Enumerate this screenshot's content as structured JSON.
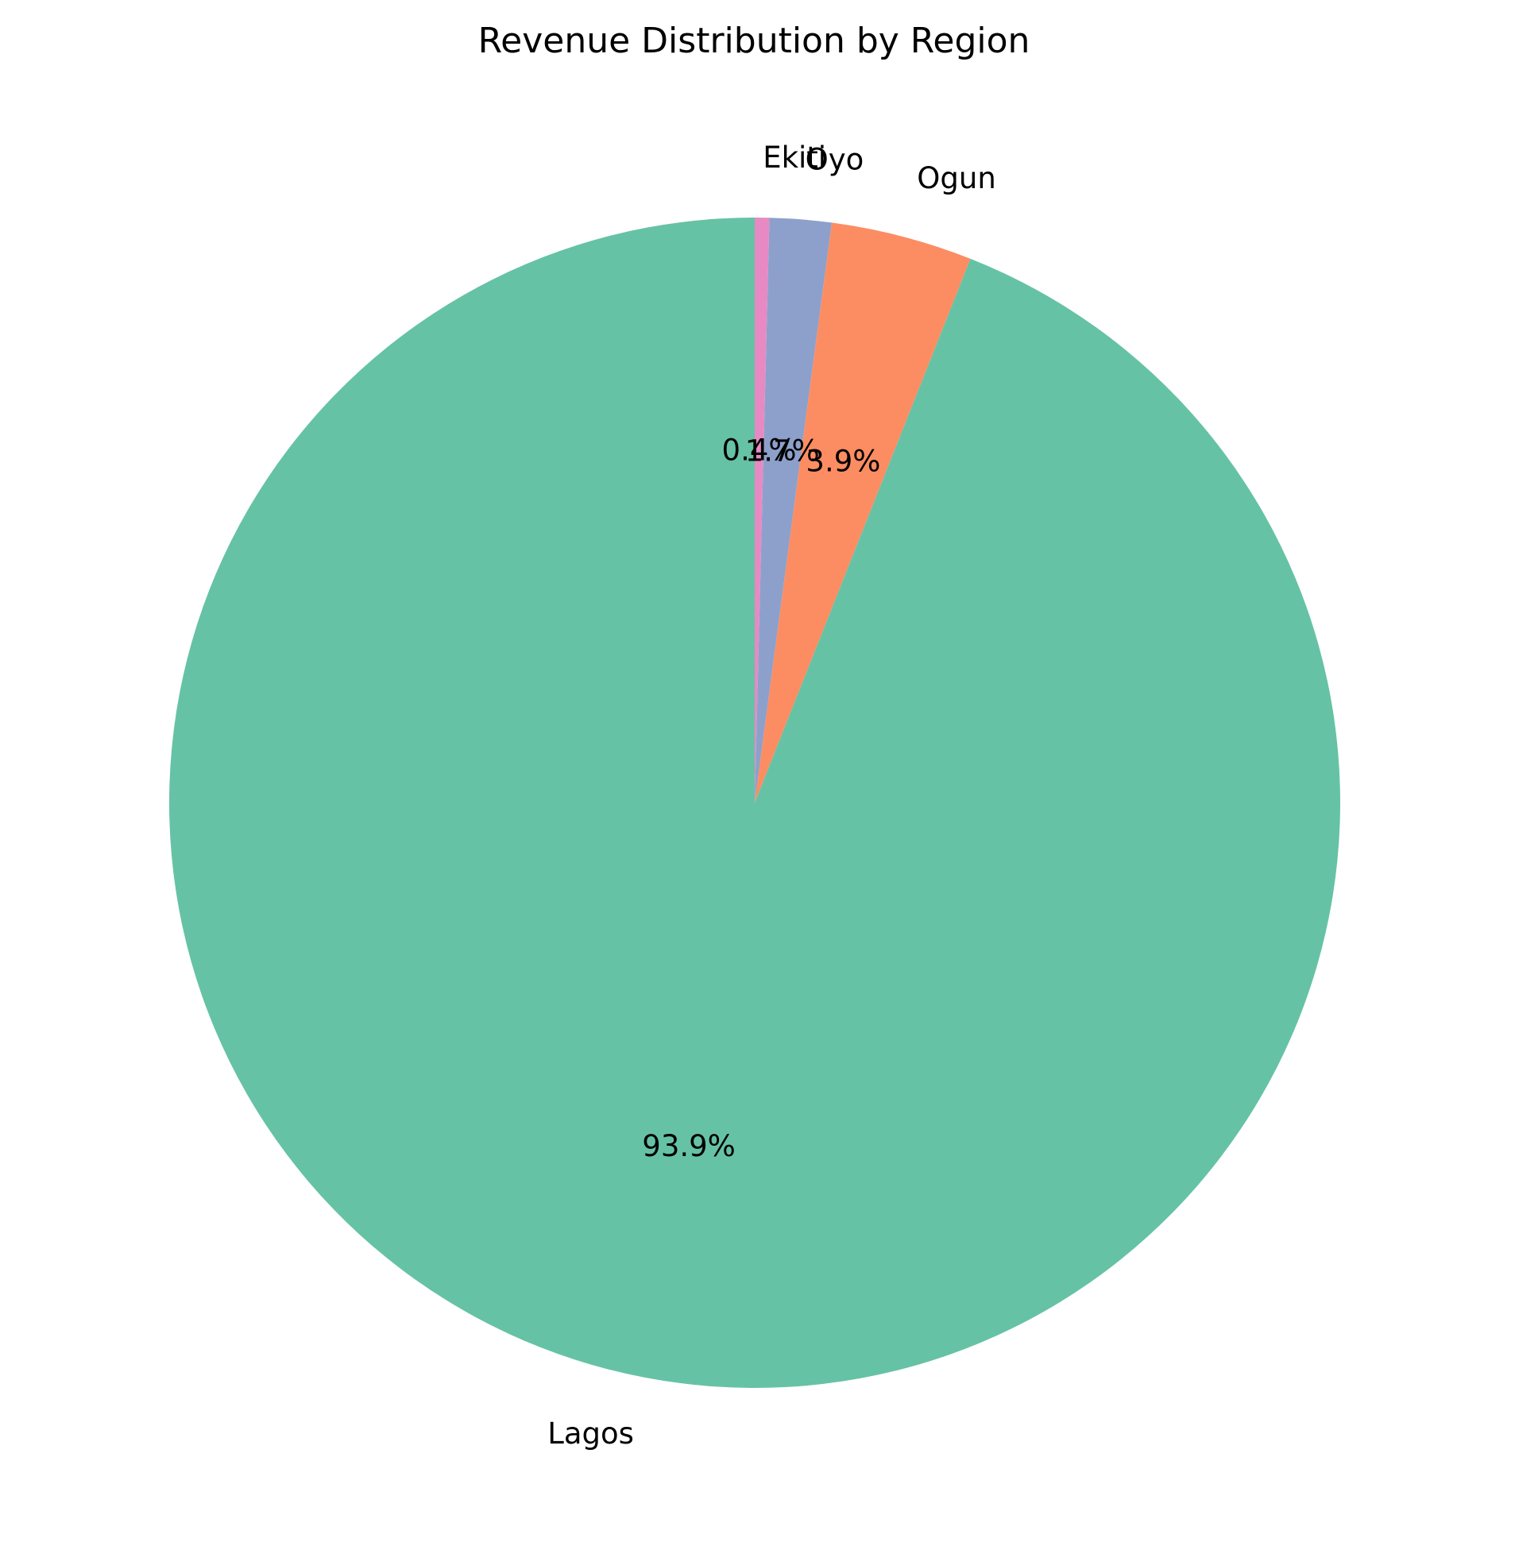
{
  "chart_data": {
    "type": "pie",
    "title": "Revenue Distribution by Region",
    "start_angle_deg": 90,
    "direction": "clockwise",
    "slices": [
      {
        "label": "Ekiti",
        "percent": 0.4,
        "pct_label": "0.4%",
        "color": "#e78ac3"
      },
      {
        "label": "Oyo",
        "percent": 1.7,
        "pct_label": "1.7%",
        "color": "#8da0cb"
      },
      {
        "label": "Ogun",
        "percent": 3.9,
        "pct_label": "3.9%",
        "color": "#fc8d62"
      },
      {
        "label": "Lagos",
        "percent": 93.9,
        "pct_label": "93.9%",
        "color": "#66c2a5"
      }
    ]
  }
}
